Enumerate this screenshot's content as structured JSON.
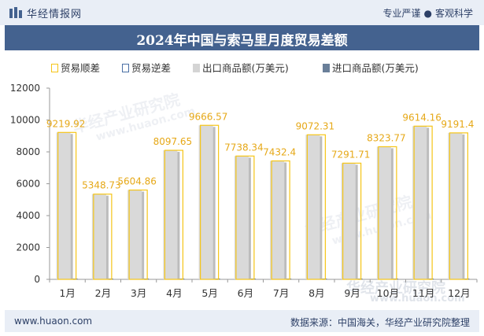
{
  "header": {
    "brand": "华经情报网",
    "tagline_left": "专业严谨",
    "tagline_sep": "●",
    "tagline_right": "客观科学"
  },
  "title": "2024年中国与索马里月度贸易差额",
  "legend": [
    {
      "label": "贸易顺差",
      "color": "#f5c518",
      "style": "outline"
    },
    {
      "label": "贸易逆差",
      "color": "#4a6fa5",
      "style": "outline"
    },
    {
      "label": "出口商品额(万美元)",
      "color": "#d4d4d4",
      "style": "fill"
    },
    {
      "label": "进口商品额(万美元)",
      "color": "#6a7f99",
      "style": "fill"
    }
  ],
  "watermarks": [
    "华经产业研究院",
    "www.huaon.com"
  ],
  "chart_data": {
    "type": "bar",
    "categories": [
      "1月",
      "2月",
      "3月",
      "4月",
      "5月",
      "6月",
      "7月",
      "8月",
      "9月",
      "10月",
      "11月",
      "12月"
    ],
    "series": [
      {
        "name": "贸易顺差",
        "values": [
          9219.92,
          5348.73,
          5604.86,
          8097.65,
          9666.57,
          7738.34,
          7432.4,
          9072.31,
          7291.71,
          8323.77,
          9614.16,
          9191.4
        ],
        "labels": [
          "9219.92",
          "5348.73",
          "5604.86",
          "8097.65",
          "9666.57",
          "7738.34",
          "7432.4",
          "9072.31",
          "7291.71",
          "8323.77",
          "9614.16",
          "9191.4"
        ]
      },
      {
        "name": "贸易逆差",
        "values": [
          0,
          0,
          0,
          0,
          0,
          0,
          0,
          0,
          0,
          0,
          0,
          0
        ]
      },
      {
        "name": "出口商品额(万美元)",
        "values": [
          9219.92,
          5348.73,
          5604.86,
          8097.65,
          9666.57,
          7738.34,
          7432.4,
          9072.31,
          7291.71,
          8323.77,
          9614.16,
          9191.4
        ]
      },
      {
        "name": "进口商品额(万美元)",
        "values": [
          0,
          0,
          0,
          0,
          0,
          0,
          0,
          0,
          0,
          0,
          0,
          0
        ]
      }
    ],
    "yticks": [
      "0",
      "2000",
      "4000",
      "6000",
      "8000",
      "10000",
      "12000"
    ],
    "ylim": [
      0,
      12000
    ],
    "xlabel": "",
    "ylabel": "",
    "grid": false,
    "legend_position": "top-left"
  },
  "footer": {
    "url": "www.huaon.com",
    "source": "数据来源：中国海关，华经产业研究院整理"
  }
}
